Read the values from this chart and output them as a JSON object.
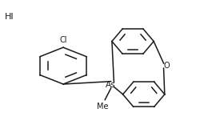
{
  "bg_color": "#ffffff",
  "line_color": "#1a1a1a",
  "line_width": 1.1,
  "font_size": 7,
  "HI_label": "HI",
  "As_label": "As",
  "O_label": "O",
  "Cl_label": "Cl",
  "Me_label": "Me"
}
